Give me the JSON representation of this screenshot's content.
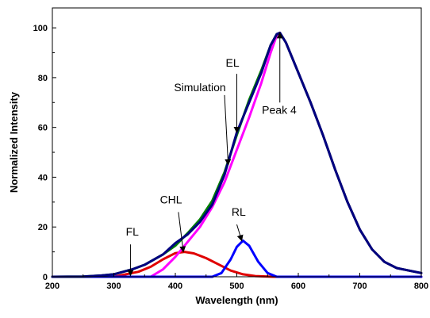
{
  "chart_data": {
    "type": "line",
    "title": "",
    "xlabel": "Wavelength (nm)",
    "ylabel": "Normalized Intensity",
    "xlim": [
      200,
      800
    ],
    "ylim": [
      0,
      108
    ],
    "xticks": [
      200,
      300,
      400,
      500,
      600,
      700,
      800
    ],
    "yticks": [
      0,
      20,
      40,
      60,
      80,
      100
    ],
    "grid": false,
    "legend": "none",
    "series": [
      {
        "color": "#e00000",
        "points": [
          [
            200,
            0
          ],
          [
            300,
            0
          ],
          [
            340,
            2
          ],
          [
            360,
            4
          ],
          [
            380,
            7
          ],
          [
            400,
            9.5
          ],
          [
            415,
            10
          ],
          [
            430,
            9.4
          ],
          [
            450,
            7.5
          ],
          [
            470,
            5
          ],
          [
            490,
            2.5
          ],
          [
            510,
            1
          ],
          [
            530,
            0.3
          ],
          [
            560,
            0
          ],
          [
            800,
            0
          ]
        ]
      },
      {
        "color": "#ff00ff",
        "points": [
          [
            200,
            0
          ],
          [
            360,
            0
          ],
          [
            380,
            3
          ],
          [
            400,
            8
          ],
          [
            420,
            14
          ],
          [
            440,
            20
          ],
          [
            460,
            28
          ],
          [
            480,
            38
          ],
          [
            500,
            51
          ],
          [
            520,
            64
          ],
          [
            540,
            78
          ],
          [
            555,
            90
          ],
          [
            565,
            97
          ],
          [
            570,
            98
          ],
          [
            580,
            94
          ],
          [
            600,
            82
          ],
          [
            620,
            70
          ],
          [
            640,
            57
          ],
          [
            660,
            43
          ],
          [
            680,
            30
          ],
          [
            700,
            19
          ],
          [
            720,
            11
          ],
          [
            740,
            6
          ],
          [
            760,
            3.5
          ],
          [
            780,
            2.5
          ],
          [
            800,
            1.5
          ]
        ]
      },
      {
        "color": "#0000ff",
        "points": [
          [
            200,
            0
          ],
          [
            460,
            0
          ],
          [
            475,
            1.5
          ],
          [
            490,
            7
          ],
          [
            500,
            12
          ],
          [
            510,
            14.5
          ],
          [
            520,
            12.5
          ],
          [
            535,
            6
          ],
          [
            550,
            1.5
          ],
          [
            565,
            0
          ],
          [
            800,
            0
          ]
        ]
      },
      {
        "color": "#008000",
        "points": [
          [
            200,
            0
          ],
          [
            250,
            0.1
          ],
          [
            280,
            0.5
          ],
          [
            300,
            1
          ],
          [
            330,
            3
          ],
          [
            350,
            4.8
          ],
          [
            380,
            9
          ],
          [
            400,
            12.5
          ],
          [
            420,
            17.5
          ],
          [
            440,
            23
          ],
          [
            460,
            30.5
          ],
          [
            480,
            42
          ],
          [
            500,
            57
          ],
          [
            520,
            71
          ],
          [
            540,
            83
          ],
          [
            555,
            93
          ],
          [
            565,
            97.5
          ],
          [
            570,
            98
          ],
          [
            580,
            94
          ],
          [
            600,
            82
          ],
          [
            620,
            70
          ],
          [
            640,
            57
          ],
          [
            660,
            43
          ],
          [
            680,
            30
          ],
          [
            700,
            19
          ],
          [
            720,
            11
          ],
          [
            740,
            6
          ],
          [
            760,
            3.5
          ],
          [
            780,
            2.5
          ],
          [
            800,
            1.5
          ]
        ]
      },
      {
        "color": "#000080",
        "points": [
          [
            200,
            0
          ],
          [
            250,
            0.1
          ],
          [
            280,
            0.5
          ],
          [
            300,
            1
          ],
          [
            330,
            3
          ],
          [
            350,
            4.8
          ],
          [
            380,
            9
          ],
          [
            400,
            13.5
          ],
          [
            420,
            17
          ],
          [
            440,
            22
          ],
          [
            460,
            29
          ],
          [
            480,
            41
          ],
          [
            500,
            58
          ],
          [
            520,
            70
          ],
          [
            540,
            82
          ],
          [
            555,
            93
          ],
          [
            565,
            97.5
          ],
          [
            570,
            98
          ],
          [
            580,
            94
          ],
          [
            600,
            82
          ],
          [
            620,
            70
          ],
          [
            640,
            57
          ],
          [
            660,
            43
          ],
          [
            680,
            30
          ],
          [
            700,
            19
          ],
          [
            720,
            11
          ],
          [
            740,
            6
          ],
          [
            760,
            3.5
          ],
          [
            780,
            2.5
          ],
          [
            800,
            1.5
          ]
        ]
      }
    ],
    "annotations": [
      {
        "text": "FL",
        "label_at": [
          330,
          16.5
        ],
        "arrow_from": [
          327,
          13
        ],
        "arrow_to": [
          327,
          0.5
        ]
      },
      {
        "text": "CHL",
        "label_at": [
          393,
          29.5
        ],
        "arrow_from": [
          405,
          26
        ],
        "arrow_to": [
          413,
          10
        ]
      },
      {
        "text": "RL",
        "label_at": [
          503,
          24.5
        ],
        "arrow_from": [
          500,
          21
        ],
        "arrow_to": [
          508,
          14.5
        ]
      },
      {
        "text": "Simulation",
        "label_at": [
          440,
          74.5
        ],
        "arrow_from": [
          480,
          73
        ],
        "arrow_to": [
          486,
          45
        ]
      },
      {
        "text": "EL",
        "label_at": [
          493,
          84.5
        ],
        "arrow_from": [
          500,
          81.5
        ],
        "arrow_to": [
          500,
          58
        ]
      },
      {
        "text": "Peak 4",
        "label_at": [
          569,
          65.5
        ],
        "arrow_from": [
          570,
          70
        ],
        "arrow_to": [
          570,
          98
        ]
      }
    ]
  }
}
